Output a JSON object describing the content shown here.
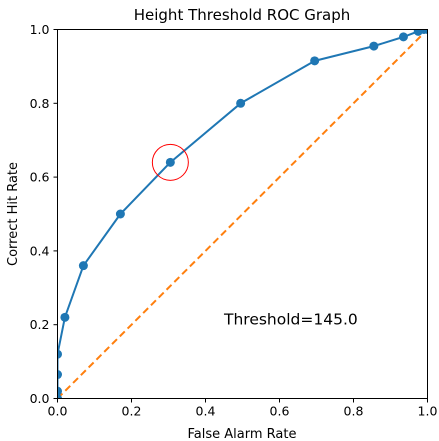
{
  "chart_data": {
    "type": "line",
    "title": "Height Threshold ROC Graph",
    "xlabel": "False Alarm Rate",
    "ylabel": "Correct Hit Rate",
    "xlim": [
      0,
      1
    ],
    "ylim": [
      0,
      1
    ],
    "xticks": [
      "0.0",
      "0.2",
      "0.4",
      "0.6",
      "0.8",
      "1.0"
    ],
    "yticks": [
      "0.0",
      "0.2",
      "0.4",
      "0.6",
      "0.8",
      "1.0"
    ],
    "grid": false,
    "series": [
      {
        "style": "line-markers",
        "color": "#1f77b4",
        "x": [
          0.0,
          0.0,
          0.0,
          0.0,
          0.02,
          0.07,
          0.17,
          0.305,
          0.495,
          0.695,
          0.855,
          0.935,
          0.975,
          0.99,
          1.0
        ],
        "y": [
          0.0,
          0.02,
          0.065,
          0.12,
          0.22,
          0.36,
          0.5,
          0.64,
          0.8,
          0.915,
          0.955,
          0.98,
          0.995,
          1.0,
          1.0
        ]
      },
      {
        "style": "dashed",
        "color": "#ff7f0e",
        "x": [
          0,
          1
        ],
        "y": [
          0,
          1
        ]
      }
    ],
    "highlight": {
      "x": 0.305,
      "y": 0.64,
      "color": "#ff0000"
    },
    "annotation": {
      "text": "Threshold=145.0",
      "x": 0.45,
      "y": 0.2
    }
  }
}
